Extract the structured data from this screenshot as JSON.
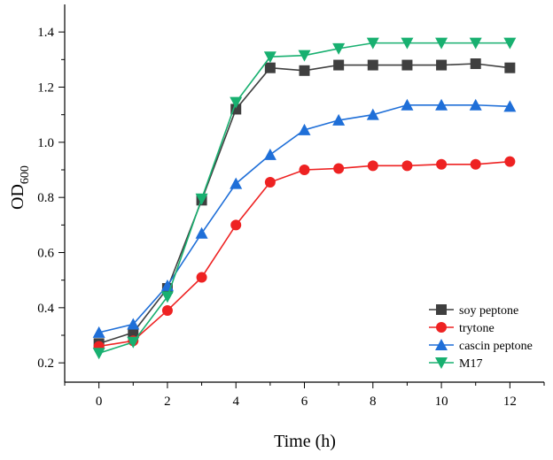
{
  "chart_data": {
    "type": "line",
    "title": "",
    "xlabel": "Time (h)",
    "ylabel_main": "OD",
    "ylabel_sub": "600",
    "xlim": [
      -1,
      13
    ],
    "ylim": [
      0.13,
      1.5
    ],
    "xticks": [
      0,
      2,
      4,
      6,
      8,
      10,
      12
    ],
    "xtick_labels": [
      "0",
      "2",
      "4",
      "6",
      "8",
      "10",
      "12"
    ],
    "yticks": [
      0.2,
      0.4,
      0.6,
      0.8,
      1.0,
      1.2,
      1.4
    ],
    "ytick_labels": [
      "0.2",
      "0.4",
      "0.6",
      "0.8",
      "1.0",
      "1.2",
      "1.4"
    ],
    "grid": false,
    "legend_position": "bottom-right",
    "x": [
      0,
      1,
      2,
      3,
      4,
      5,
      6,
      7,
      8,
      9,
      10,
      11,
      12
    ],
    "series": [
      {
        "name": "soy peptone",
        "color": "#3f3f3f",
        "marker": "square",
        "values": [
          0.27,
          0.31,
          0.47,
          0.79,
          1.12,
          1.27,
          1.26,
          1.28,
          1.28,
          1.28,
          1.28,
          1.285,
          1.27
        ]
      },
      {
        "name": "trytone",
        "color": "#ee2222",
        "marker": "circle",
        "values": [
          0.26,
          0.28,
          0.39,
          0.51,
          0.7,
          0.855,
          0.9,
          0.905,
          0.915,
          0.915,
          0.92,
          0.92,
          0.93
        ]
      },
      {
        "name": "cascin peptone",
        "color": "#1f6fd8",
        "marker": "triangle-up",
        "values": [
          0.31,
          0.34,
          0.48,
          0.67,
          0.85,
          0.955,
          1.045,
          1.08,
          1.1,
          1.135,
          1.135,
          1.135,
          1.13
        ]
      },
      {
        "name": "M17",
        "color": "#18b070",
        "marker": "triangle-down",
        "values": [
          0.235,
          0.275,
          0.44,
          0.795,
          1.145,
          1.31,
          1.315,
          1.34,
          1.36,
          1.36,
          1.36,
          1.36,
          1.36
        ]
      }
    ]
  }
}
